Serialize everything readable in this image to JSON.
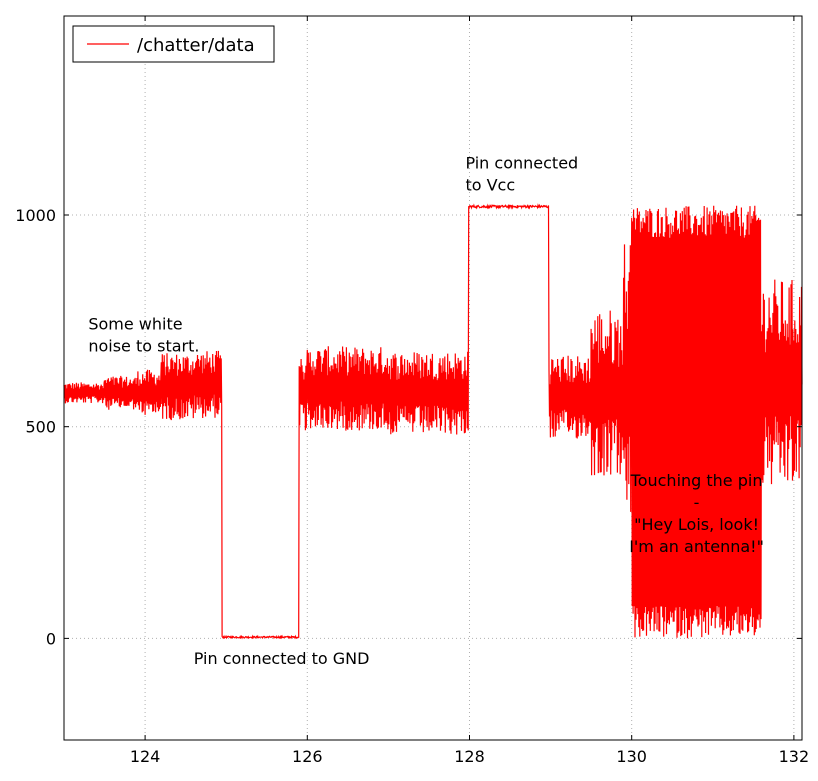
{
  "chart_data": {
    "type": "line",
    "title": "",
    "xlabel": "",
    "ylabel": "",
    "xlim": [
      123.0,
      132.1
    ],
    "ylim": [
      -240,
      1470
    ],
    "x_ticks": [
      124,
      126,
      128,
      130,
      132
    ],
    "y_ticks": [
      0,
      500,
      1000
    ],
    "grid": true,
    "legend_position": "top-left",
    "series": [
      {
        "name": "/chatter/data",
        "color": "#ff0000",
        "segments": [
          {
            "x_start": 123.0,
            "x_end": 123.5,
            "center": 580,
            "amplitude": 25
          },
          {
            "x_start": 123.5,
            "x_end": 123.9,
            "center": 580,
            "amplitude": 40
          },
          {
            "x_start": 123.9,
            "x_end": 124.2,
            "center": 580,
            "amplitude": 55
          },
          {
            "x_start": 124.2,
            "x_end": 124.6,
            "center": 595,
            "amplitude": 80
          },
          {
            "x_start": 124.6,
            "x_end": 124.95,
            "center": 600,
            "amplitude": 80
          },
          {
            "x_start": 124.95,
            "x_end": 125.9,
            "center": 3,
            "amplitude": 2
          },
          {
            "x_start": 125.9,
            "x_end": 126.0,
            "center": 580,
            "amplitude": 90
          },
          {
            "x_start": 126.0,
            "x_end": 127.0,
            "center": 590,
            "amplitude": 100
          },
          {
            "x_start": 127.0,
            "x_end": 127.99,
            "center": 580,
            "amplitude": 100
          },
          {
            "x_start": 127.99,
            "x_end": 128.98,
            "center": 1020,
            "amplitude": 3
          },
          {
            "x_start": 128.98,
            "x_end": 129.5,
            "center": 570,
            "amplitude": 100
          },
          {
            "x_start": 129.5,
            "x_end": 129.9,
            "center": 580,
            "amplitude": 200
          },
          {
            "x_start": 129.9,
            "x_end": 130.0,
            "center": 600,
            "amplitude": 350
          },
          {
            "x_start": 130.0,
            "x_end": 131.6,
            "center": 511,
            "amplitude": 511
          },
          {
            "x_start": 131.6,
            "x_end": 132.1,
            "center": 600,
            "amplitude": 250
          }
        ]
      }
    ],
    "annotations": [
      {
        "id": "noise",
        "lines": [
          "Some white",
          "noise to start."
        ],
        "x": 123.3,
        "y": 730
      },
      {
        "id": "gnd",
        "lines": [
          "Pin connected to GND"
        ],
        "x": 124.6,
        "y": -60
      },
      {
        "id": "vcc",
        "lines": [
          "Pin connected",
          "to Vcc"
        ],
        "x": 127.95,
        "y": 1110
      },
      {
        "id": "antenna",
        "lines": [
          "Touching the pin",
          "-",
          "\"Hey Lois, look!",
          "I'm an antenna!\""
        ],
        "x": 130.8,
        "y": 360
      }
    ]
  }
}
